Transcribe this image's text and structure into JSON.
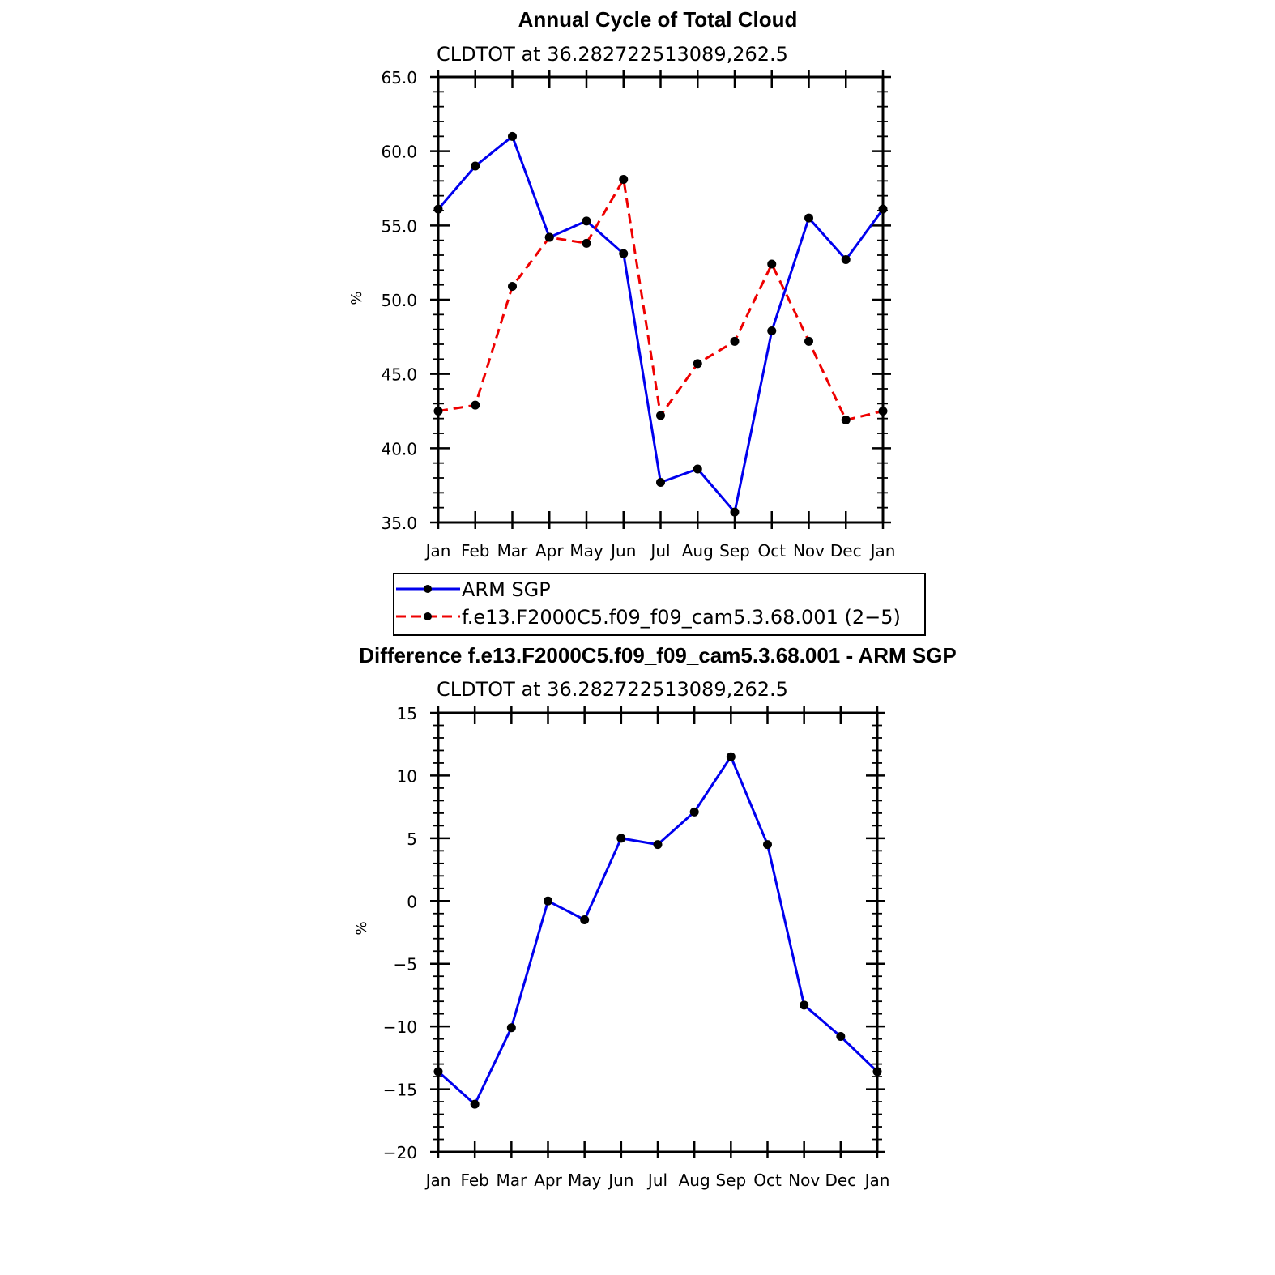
{
  "chart_data": [
    {
      "type": "line",
      "title": "Annual Cycle of Total Cloud",
      "subtitle": "CLDTOT at 36.282722513089,262.5",
      "xlabel": "",
      "ylabel": "%",
      "categories": [
        "Jan",
        "Feb",
        "Mar",
        "Apr",
        "May",
        "Jun",
        "Jul",
        "Aug",
        "Sep",
        "Oct",
        "Nov",
        "Dec",
        "Jan"
      ],
      "ylim": [
        35.0,
        65.0
      ],
      "yticks": [
        "35.0",
        "40.0",
        "45.0",
        "50.0",
        "55.0",
        "60.0",
        "65.0"
      ],
      "series": [
        {
          "name": "ARM SGP",
          "color": "#0000ee",
          "style": "solid",
          "values": [
            56.1,
            59.0,
            61.0,
            54.2,
            55.3,
            53.1,
            37.7,
            38.6,
            35.7,
            47.9,
            55.5,
            52.7,
            56.1
          ]
        },
        {
          "name": "f.e13.F2000C5.f09_f09_cam5.3.68.001 (2−5)",
          "color": "#ee0000",
          "style": "dashed",
          "values": [
            42.5,
            42.9,
            50.9,
            54.2,
            53.8,
            58.1,
            42.2,
            45.7,
            47.2,
            52.4,
            47.2,
            41.9,
            42.5
          ]
        }
      ],
      "legend": "below"
    },
    {
      "type": "line",
      "title": "Difference f.e13.F2000C5.f09_f09_cam5.3.68.001 - ARM SGP",
      "subtitle": "CLDTOT at 36.282722513089,262.5",
      "xlabel": "",
      "ylabel": "%",
      "categories": [
        "Jan",
        "Feb",
        "Mar",
        "Apr",
        "May",
        "Jun",
        "Jul",
        "Aug",
        "Sep",
        "Oct",
        "Nov",
        "Dec",
        "Jan"
      ],
      "ylim": [
        -20,
        15
      ],
      "yticks": [
        "−20",
        "−15",
        "−10",
        "−5",
        "0",
        "5",
        "10",
        "15"
      ],
      "series": [
        {
          "name": "Difference",
          "color": "#0000ee",
          "style": "solid",
          "values": [
            -13.6,
            -16.2,
            -10.1,
            0.0,
            -1.5,
            5.0,
            4.5,
            7.1,
            11.5,
            4.5,
            -8.3,
            -10.8,
            -13.6
          ]
        }
      ]
    }
  ]
}
